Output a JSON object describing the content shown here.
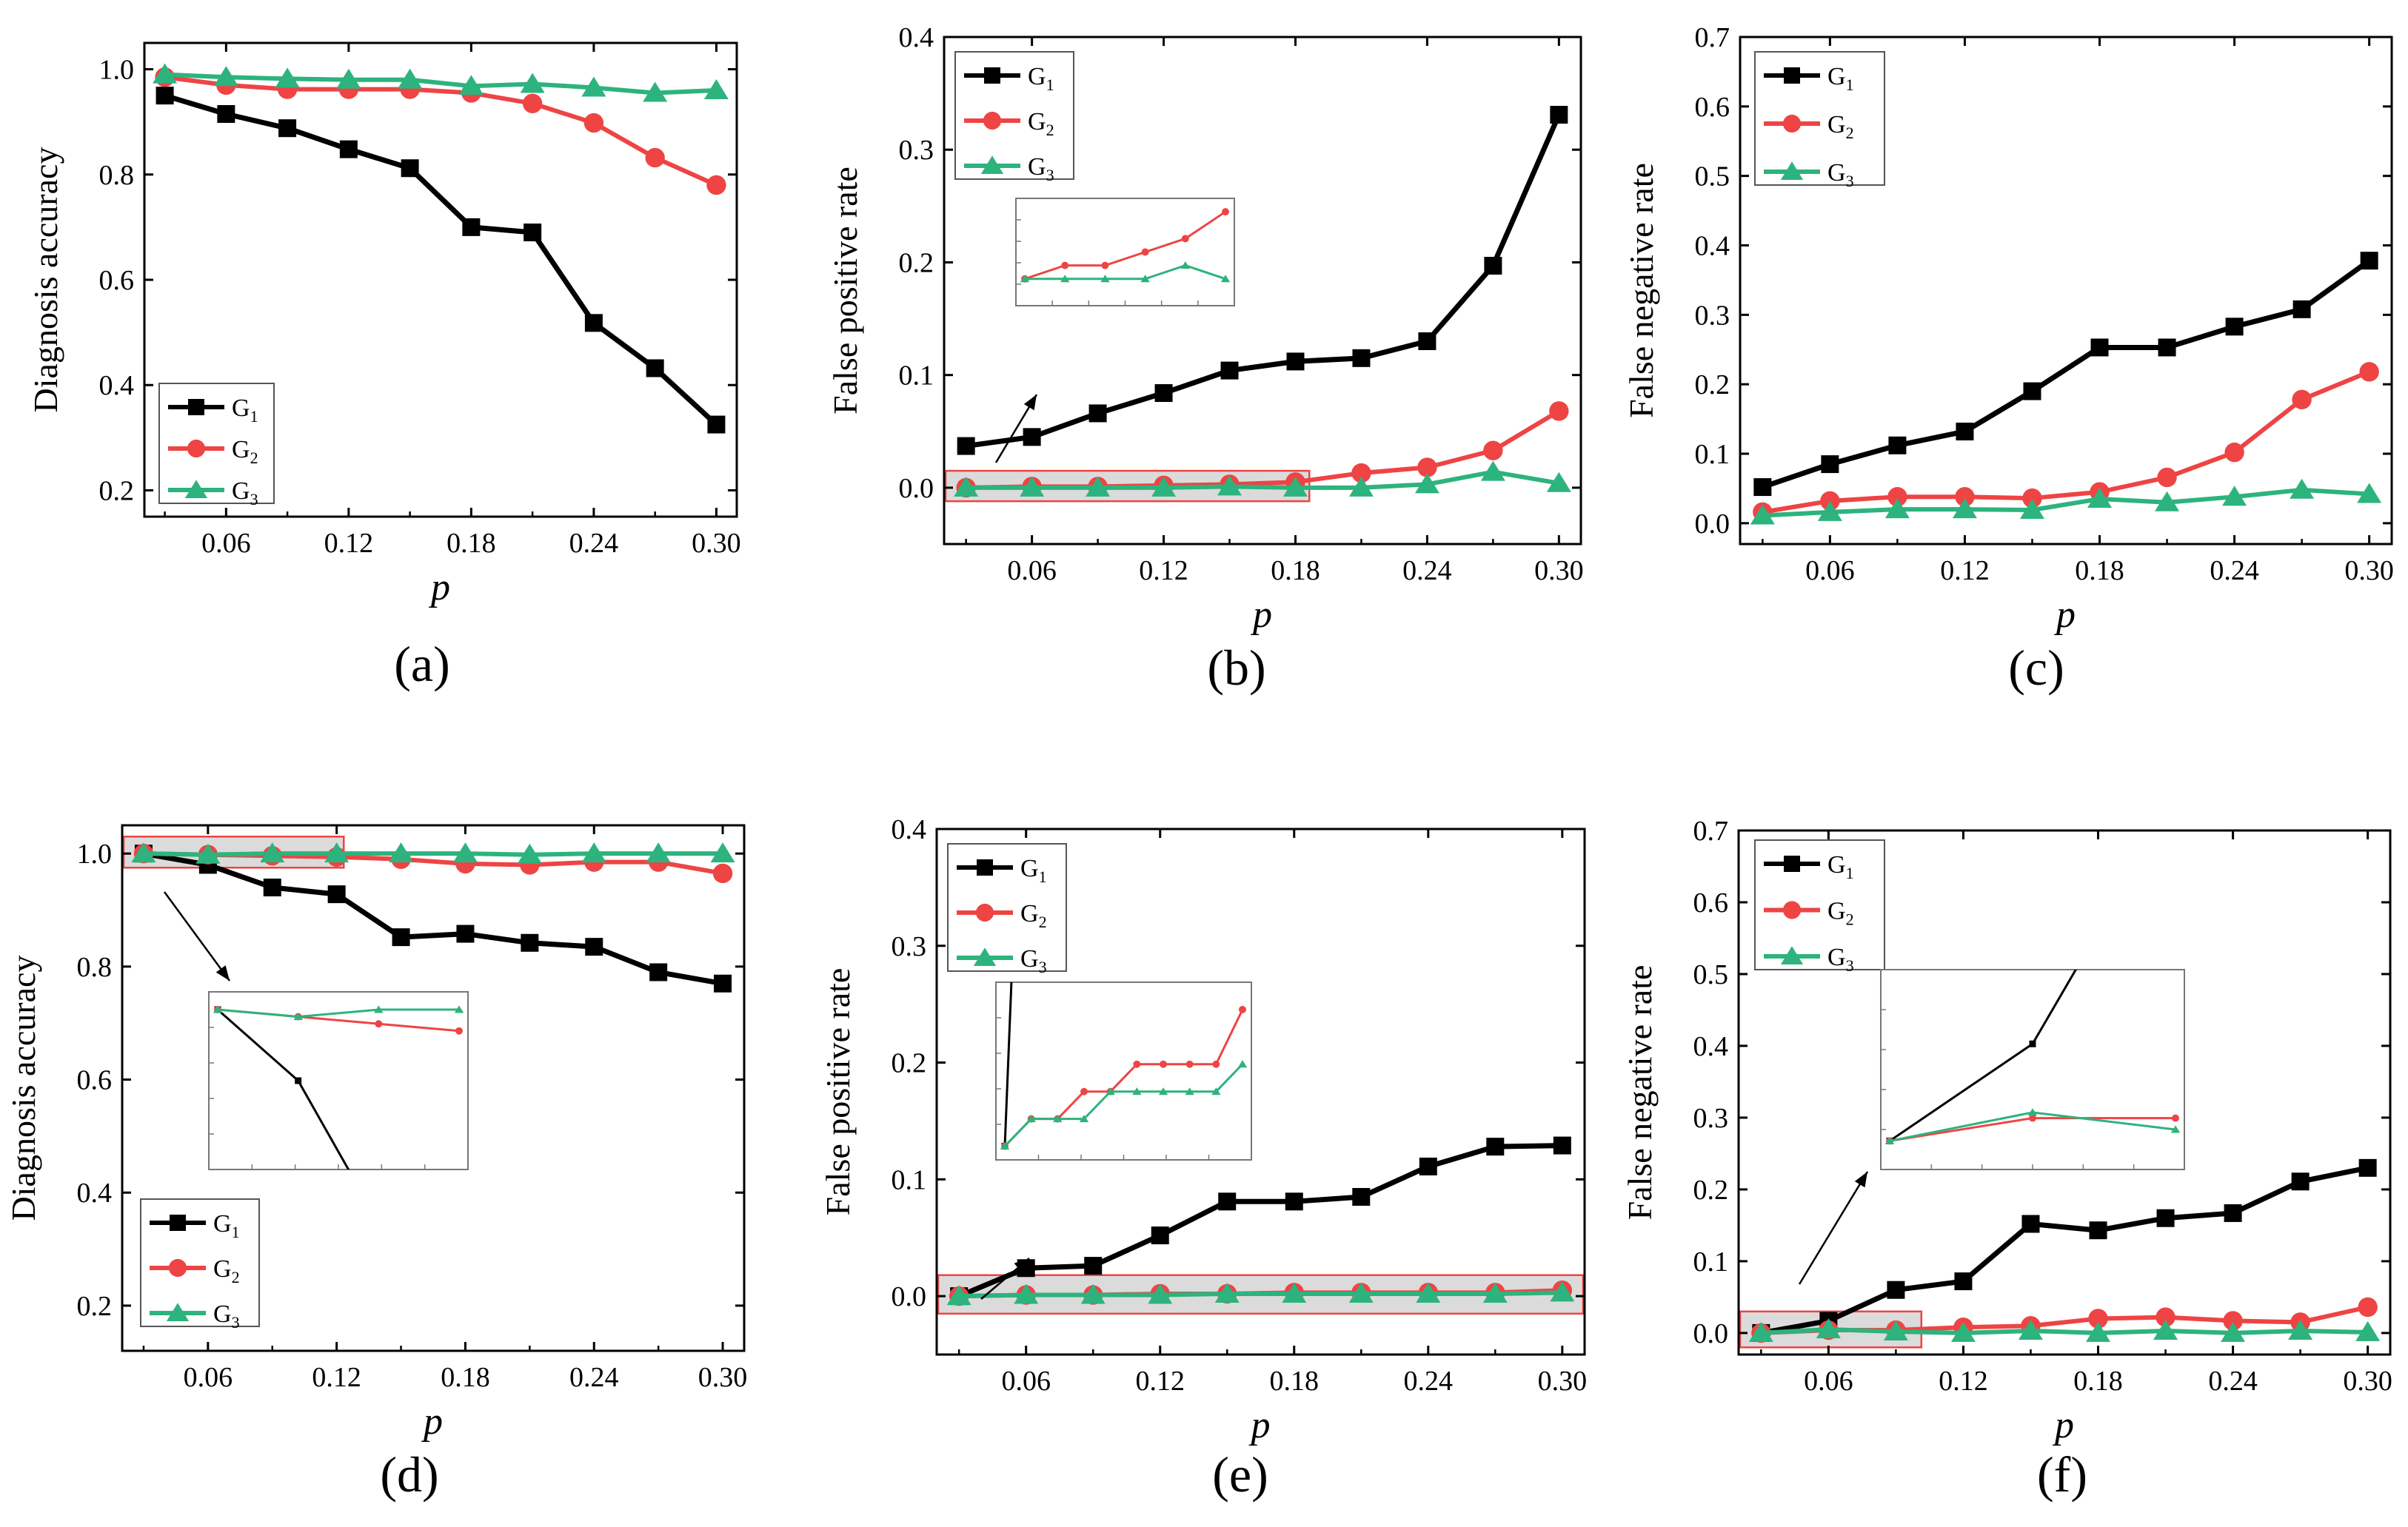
{
  "chart_data": [
    {
      "type": "line",
      "id": "a",
      "panel_label": "(a)",
      "xlabel": "p",
      "ylabel": "Diagnosis accuracy",
      "xlim": [
        0.02,
        0.31
      ],
      "ylim": [
        0.15,
        1.05
      ],
      "xticks": [
        0.06,
        0.12,
        0.18,
        0.24,
        0.3
      ],
      "xtick_labels": [
        "0.06",
        "0.12",
        "0.18",
        "0.24",
        "0.30"
      ],
      "yticks": [
        0.2,
        0.4,
        0.6,
        0.8,
        1.0
      ],
      "ytick_labels": [
        "0.2",
        "0.4",
        "0.6",
        "0.8",
        "1.0"
      ],
      "legend_position": "bottom-left",
      "x": [
        0.03,
        0.06,
        0.09,
        0.12,
        0.15,
        0.18,
        0.21,
        0.24,
        0.27,
        0.3
      ],
      "series": [
        {
          "name": "G",
          "sub": "1",
          "color": "#000000",
          "marker": "square",
          "values": [
            0.95,
            0.915,
            0.888,
            0.848,
            0.812,
            0.7,
            0.69,
            0.518,
            0.432,
            0.325
          ]
        },
        {
          "name": "G",
          "sub": "2",
          "color": "#ee4444",
          "marker": "circle",
          "values": [
            0.985,
            0.97,
            0.962,
            0.962,
            0.962,
            0.955,
            0.935,
            0.898,
            0.832,
            0.78
          ]
        },
        {
          "name": "G",
          "sub": "3",
          "color": "#2db37d",
          "marker": "triangle",
          "values": [
            0.99,
            0.985,
            0.982,
            0.98,
            0.98,
            0.968,
            0.972,
            0.965,
            0.955,
            0.96
          ]
        }
      ]
    },
    {
      "type": "line",
      "id": "b",
      "panel_label": "(b)",
      "xlabel": "p",
      "ylabel": "False positive rate",
      "xlim": [
        0.02,
        0.31
      ],
      "ylim": [
        -0.05,
        0.4
      ],
      "xticks": [
        0.06,
        0.12,
        0.18,
        0.24,
        0.3
      ],
      "xtick_labels": [
        "0.06",
        "0.12",
        "0.18",
        "0.24",
        "0.30"
      ],
      "yticks": [
        0.0,
        0.1,
        0.2,
        0.3,
        0.4
      ],
      "ytick_labels": [
        "0.0",
        "0.1",
        "0.2",
        "0.3",
        "0.4"
      ],
      "legend_position": "top-left",
      "x": [
        0.03,
        0.06,
        0.09,
        0.12,
        0.15,
        0.18,
        0.21,
        0.24,
        0.27,
        0.3
      ],
      "series": [
        {
          "name": "G",
          "sub": "1",
          "color": "#000000",
          "marker": "square",
          "values": [
            0.037,
            0.045,
            0.066,
            0.084,
            0.104,
            0.112,
            0.115,
            0.13,
            0.197,
            0.331
          ]
        },
        {
          "name": "G",
          "sub": "2",
          "color": "#ee4444",
          "marker": "circle",
          "values": [
            0.0,
            0.001,
            0.001,
            0.002,
            0.003,
            0.005,
            0.013,
            0.018,
            0.033,
            0.068
          ]
        },
        {
          "name": "G",
          "sub": "3",
          "color": "#2db37d",
          "marker": "triangle",
          "values": [
            0.0,
            0.0,
            0.0,
            0.0,
            0.001,
            0.0,
            0.0,
            0.003,
            0.014,
            0.004
          ]
        }
      ]
    },
    {
      "type": "line",
      "id": "c",
      "panel_label": "(c)",
      "xlabel": "p",
      "ylabel": "False negative rate",
      "xlim": [
        0.02,
        0.31
      ],
      "ylim": [
        -0.03,
        0.7
      ],
      "xticks": [
        0.06,
        0.12,
        0.18,
        0.24,
        0.3
      ],
      "xtick_labels": [
        "0.06",
        "0.12",
        "0.18",
        "0.24",
        "0.30"
      ],
      "yticks": [
        0.0,
        0.1,
        0.2,
        0.3,
        0.4,
        0.5,
        0.6,
        0.7
      ],
      "ytick_labels": [
        "0.0",
        "0.1",
        "0.2",
        "0.3",
        "0.4",
        "0.5",
        "0.6",
        "0.7"
      ],
      "legend_position": "top-left",
      "x": [
        0.03,
        0.06,
        0.09,
        0.12,
        0.15,
        0.18,
        0.21,
        0.24,
        0.27,
        0.3
      ],
      "series": [
        {
          "name": "G",
          "sub": "1",
          "color": "#000000",
          "marker": "square",
          "values": [
            0.052,
            0.085,
            0.112,
            0.132,
            0.19,
            0.253,
            0.253,
            0.283,
            0.308,
            0.378
          ]
        },
        {
          "name": "G",
          "sub": "2",
          "color": "#ee4444",
          "marker": "circle",
          "values": [
            0.016,
            0.032,
            0.038,
            0.038,
            0.036,
            0.045,
            0.066,
            0.102,
            0.178,
            0.218
          ]
        },
        {
          "name": "G",
          "sub": "3",
          "color": "#2db37d",
          "marker": "triangle",
          "values": [
            0.011,
            0.016,
            0.02,
            0.02,
            0.019,
            0.035,
            0.03,
            0.038,
            0.048,
            0.042
          ]
        }
      ]
    },
    {
      "type": "line",
      "id": "d",
      "panel_label": "(d)",
      "xlabel": "p",
      "ylabel": "Diagnosis accuracy",
      "xlim": [
        0.02,
        0.31
      ],
      "ylim": [
        0.12,
        1.05
      ],
      "xticks": [
        0.06,
        0.12,
        0.18,
        0.24,
        0.3
      ],
      "xtick_labels": [
        "0.06",
        "0.12",
        "0.18",
        "0.24",
        "0.30"
      ],
      "yticks": [
        0.2,
        0.4,
        0.6,
        0.8,
        1.0
      ],
      "ytick_labels": [
        "0.2",
        "0.4",
        "0.6",
        "0.8",
        "1.0"
      ],
      "legend_position": "bottom-left",
      "x": [
        0.03,
        0.06,
        0.09,
        0.12,
        0.15,
        0.18,
        0.21,
        0.24,
        0.27,
        0.3
      ],
      "series": [
        {
          "name": "G",
          "sub": "1",
          "color": "#000000",
          "marker": "square",
          "values": [
            1.0,
            0.98,
            0.94,
            0.928,
            0.852,
            0.858,
            0.842,
            0.835,
            0.79,
            0.77
          ]
        },
        {
          "name": "G",
          "sub": "2",
          "color": "#ee4444",
          "marker": "circle",
          "values": [
            1.0,
            0.998,
            0.996,
            0.994,
            0.99,
            0.982,
            0.98,
            0.985,
            0.985,
            0.965
          ]
        },
        {
          "name": "G",
          "sub": "3",
          "color": "#2db37d",
          "marker": "triangle",
          "values": [
            1.0,
            0.998,
            1.0,
            1.0,
            1.0,
            1.0,
            0.998,
            1.0,
            1.0,
            1.0
          ]
        }
      ]
    },
    {
      "type": "line",
      "id": "e",
      "panel_label": "(e)",
      "xlabel": "p",
      "ylabel": "False positive rate",
      "xlim": [
        0.02,
        0.31
      ],
      "ylim": [
        -0.05,
        0.4
      ],
      "xticks": [
        0.06,
        0.12,
        0.18,
        0.24,
        0.3
      ],
      "xtick_labels": [
        "0.06",
        "0.12",
        "0.18",
        "0.24",
        "0.30"
      ],
      "yticks": [
        0.0,
        0.1,
        0.2,
        0.3,
        0.4
      ],
      "ytick_labels": [
        "0.0",
        "0.1",
        "0.2",
        "0.3",
        "0.4"
      ],
      "legend_position": "top-left",
      "x": [
        0.03,
        0.06,
        0.09,
        0.12,
        0.15,
        0.18,
        0.21,
        0.24,
        0.27,
        0.3
      ],
      "series": [
        {
          "name": "G",
          "sub": "1",
          "color": "#000000",
          "marker": "square",
          "values": [
            0.0,
            0.024,
            0.026,
            0.052,
            0.081,
            0.081,
            0.085,
            0.111,
            0.128,
            0.129
          ]
        },
        {
          "name": "G",
          "sub": "2",
          "color": "#ee4444",
          "marker": "circle",
          "values": [
            0.0,
            0.001,
            0.001,
            0.002,
            0.002,
            0.003,
            0.003,
            0.003,
            0.003,
            0.005
          ]
        },
        {
          "name": "G",
          "sub": "3",
          "color": "#2db37d",
          "marker": "triangle",
          "values": [
            0.0,
            0.001,
            0.001,
            0.001,
            0.002,
            0.002,
            0.002,
            0.002,
            0.002,
            0.003
          ]
        }
      ]
    },
    {
      "type": "line",
      "id": "f",
      "panel_label": "(f)",
      "xlabel": "p",
      "ylabel": "False negative rate",
      "xlim": [
        0.02,
        0.31
      ],
      "ylim": [
        -0.03,
        0.7
      ],
      "xticks": [
        0.06,
        0.12,
        0.18,
        0.24,
        0.3
      ],
      "xtick_labels": [
        "0.06",
        "0.12",
        "0.18",
        "0.24",
        "0.30"
      ],
      "yticks": [
        0.0,
        0.1,
        0.2,
        0.3,
        0.4,
        0.5,
        0.6,
        0.7
      ],
      "ytick_labels": [
        "0.0",
        "0.1",
        "0.2",
        "0.3",
        "0.4",
        "0.5",
        "0.6",
        "0.7"
      ],
      "legend_position": "top-left",
      "x": [
        0.03,
        0.06,
        0.09,
        0.12,
        0.15,
        0.18,
        0.21,
        0.24,
        0.27,
        0.3
      ],
      "series": [
        {
          "name": "G",
          "sub": "1",
          "color": "#000000",
          "marker": "square",
          "values": [
            0.0,
            0.017,
            0.06,
            0.072,
            0.152,
            0.143,
            0.16,
            0.167,
            0.211,
            0.23
          ]
        },
        {
          "name": "G",
          "sub": "2",
          "color": "#ee4444",
          "marker": "circle",
          "values": [
            0.0,
            0.004,
            0.004,
            0.008,
            0.01,
            0.02,
            0.022,
            0.017,
            0.015,
            0.036
          ]
        },
        {
          "name": "G",
          "sub": "3",
          "color": "#2db37d",
          "marker": "triangle",
          "values": [
            0.0,
            0.005,
            0.002,
            0.0,
            0.003,
            0.0,
            0.003,
            0.0,
            0.003,
            0.001
          ]
        }
      ]
    }
  ]
}
